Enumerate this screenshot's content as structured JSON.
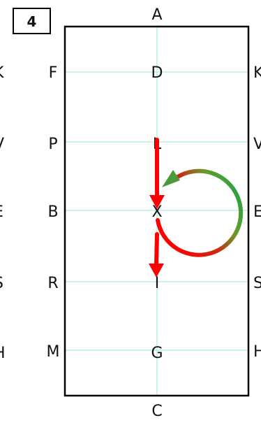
{
  "badge": "4",
  "letters": {
    "top": "A",
    "bottom": "C",
    "left": [
      "F",
      "P",
      "B",
      "R",
      "M"
    ],
    "center": [
      "D",
      "L",
      "X",
      "I",
      "G"
    ],
    "right": [
      "K",
      "V",
      "E",
      "S",
      "H"
    ],
    "left_cut": [
      "K",
      "V",
      "E",
      "S",
      "H"
    ]
  },
  "colors": {
    "arena_border": "#000000",
    "grid_line": "#b8f0dc",
    "arrow_red": "#ff0000",
    "arrow_green": "#1aa64a"
  }
}
